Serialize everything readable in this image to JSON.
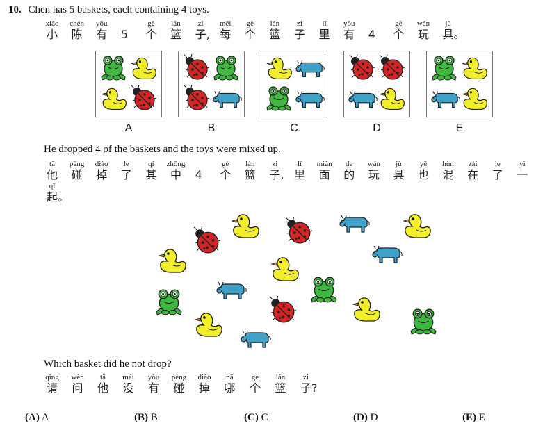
{
  "question": {
    "number": "10.",
    "line1": "Chen has 5 baskets, each containing 4 toys.",
    "line1_cn": [
      {
        "py": "xiǎo",
        "hz": "小"
      },
      {
        "py": "chén",
        "hz": "陈"
      },
      {
        "py": "yǒu",
        "hz": "有"
      },
      {
        "py": "",
        "hz": "5"
      },
      {
        "py": "gè",
        "hz": "个"
      },
      {
        "py": "lán",
        "hz": "篮"
      },
      {
        "py": "zi",
        "hz": "子,"
      },
      {
        "py": "měi",
        "hz": "每"
      },
      {
        "py": "gè",
        "hz": "个"
      },
      {
        "py": "lán",
        "hz": "篮"
      },
      {
        "py": "zi",
        "hz": "子"
      },
      {
        "py": "lǐ",
        "hz": "里"
      },
      {
        "py": "yǒu",
        "hz": "有"
      },
      {
        "py": "",
        "hz": "4"
      },
      {
        "py": "gè",
        "hz": "个"
      },
      {
        "py": "wán",
        "hz": "玩"
      },
      {
        "py": "jù",
        "hz": "具。"
      }
    ],
    "line2": "He dropped 4 of the baskets and the toys were mixed up.",
    "line2_cn": [
      {
        "py": "tā",
        "hz": "他"
      },
      {
        "py": "pèng",
        "hz": "碰"
      },
      {
        "py": "diào",
        "hz": "掉"
      },
      {
        "py": "le",
        "hz": "了"
      },
      {
        "py": "qí",
        "hz": "其"
      },
      {
        "py": "zhōng",
        "hz": "中"
      },
      {
        "py": "",
        "hz": "4"
      },
      {
        "py": "gè",
        "hz": "个"
      },
      {
        "py": "lán",
        "hz": "篮"
      },
      {
        "py": "zi",
        "hz": "子,"
      },
      {
        "py": "lǐ",
        "hz": "里"
      },
      {
        "py": "miàn",
        "hz": "面"
      },
      {
        "py": "de",
        "hz": "的"
      },
      {
        "py": "wán",
        "hz": "玩"
      },
      {
        "py": "jù",
        "hz": "具"
      },
      {
        "py": "yě",
        "hz": "也"
      },
      {
        "py": "hùn",
        "hz": "混"
      },
      {
        "py": "zài",
        "hz": "在"
      },
      {
        "py": "le",
        "hz": "了"
      },
      {
        "py": "yì",
        "hz": "一"
      }
    ],
    "line2_cn_cont": [
      {
        "py": "qǐ",
        "hz": "起。"
      }
    ],
    "line3": "Which basket did he not drop?",
    "line3_cn": [
      {
        "py": "qǐng",
        "hz": "请"
      },
      {
        "py": "wèn",
        "hz": "问"
      },
      {
        "py": "tā",
        "hz": "他"
      },
      {
        "py": "méi",
        "hz": "没"
      },
      {
        "py": "yǒu",
        "hz": "有"
      },
      {
        "py": "pèng",
        "hz": "碰"
      },
      {
        "py": "diào",
        "hz": "掉"
      },
      {
        "py": "nǎ",
        "hz": "哪"
      },
      {
        "py": "ge",
        "hz": "个"
      },
      {
        "py": "lán",
        "hz": "篮"
      },
      {
        "py": "zi",
        "hz": "子?"
      }
    ]
  },
  "baskets": [
    {
      "label": "A",
      "toys": [
        "frog",
        "duck",
        "duck",
        "ladybug"
      ]
    },
    {
      "label": "B",
      "toys": [
        "ladybug",
        "frog",
        "ladybug",
        "cow"
      ]
    },
    {
      "label": "C",
      "toys": [
        "duck",
        "cow",
        "frog",
        "cow"
      ]
    },
    {
      "label": "D",
      "toys": [
        "ladybug",
        "ladybug",
        "cow",
        "duck"
      ]
    },
    {
      "label": "E",
      "toys": [
        "frog",
        "duck",
        "cow",
        "duck"
      ]
    }
  ],
  "pile_toys": [
    "duck",
    "ladybug",
    "cow",
    "duck",
    "ladybug",
    "cow",
    "duck",
    "duck",
    "frog",
    "cow",
    "frog",
    "ladybug",
    "duck",
    "frog",
    "duck",
    "cow"
  ],
  "choices": [
    {
      "key": "(A)",
      "value": "A"
    },
    {
      "key": "(B)",
      "value": "B"
    },
    {
      "key": "(C)",
      "value": "C"
    },
    {
      "key": "(D)",
      "value": "D"
    },
    {
      "key": "(E)",
      "value": "E"
    }
  ],
  "colors": {
    "duck": "#f2ef2a",
    "frog": "#3fb83f",
    "cow": "#3fa0c8",
    "ladybug": "#d42424"
  }
}
